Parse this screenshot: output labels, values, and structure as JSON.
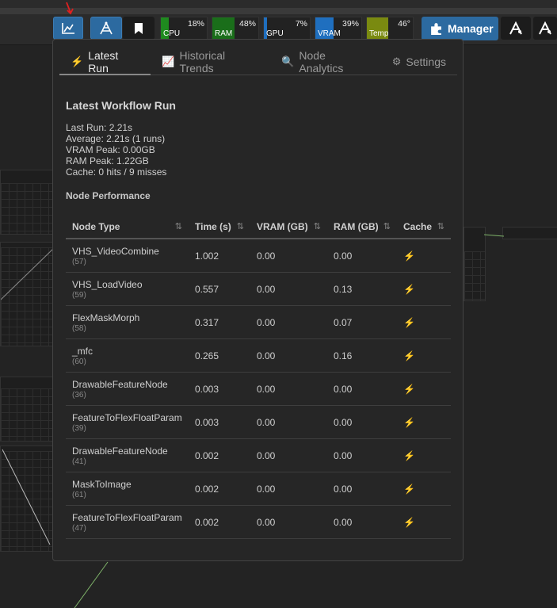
{
  "topbar": {
    "monitors": [
      {
        "label": "CPU",
        "value": "18%",
        "fill_pct": 18,
        "color": "#1f8a1f"
      },
      {
        "label": "RAM",
        "value": "48%",
        "fill_pct": 48,
        "color": "#1a6e1a"
      },
      {
        "label": "GPU",
        "value": "7%",
        "fill_pct": 7,
        "color": "#1f6fbf"
      },
      {
        "label": "VRAM",
        "value": "39%",
        "fill_pct": 39,
        "color": "#1f6fbf"
      },
      {
        "label": "Temp",
        "value": "46°",
        "fill_pct": 46,
        "color": "#7a8a10"
      }
    ],
    "manager_label": "Manager"
  },
  "popup": {
    "tabs": [
      {
        "label": "Latest Run",
        "icon": "bolt-icon"
      },
      {
        "label": "Historical Trends",
        "icon": "chart-icon"
      },
      {
        "label": "Node Analytics",
        "icon": "magnifier-icon"
      },
      {
        "label": "Settings",
        "icon": "gear-icon"
      }
    ],
    "title": "Latest Workflow Run",
    "stats": {
      "last_run": "Last Run: 2.21s",
      "average": "Average: 2.21s (1 runs)",
      "vram_peak": "VRAM Peak: 0.00GB",
      "ram_peak": "RAM Peak: 1.22GB",
      "cache": "Cache: 0 hits / 9 misses"
    },
    "perf_title": "Node Performance",
    "columns": [
      "Node Type",
      "Time (s)",
      "VRAM (GB)",
      "RAM (GB)",
      "Cache"
    ],
    "rows": [
      {
        "node": "VHS_VideoCombine",
        "id": "(57)",
        "time": "1.002",
        "vram": "0.00",
        "ram": "0.00"
      },
      {
        "node": "VHS_LoadVideo",
        "id": "(59)",
        "time": "0.557",
        "vram": "0.00",
        "ram": "0.13"
      },
      {
        "node": "FlexMaskMorph",
        "id": "(58)",
        "time": "0.317",
        "vram": "0.00",
        "ram": "0.07"
      },
      {
        "node": "_mfc",
        "id": "(60)",
        "time": "0.265",
        "vram": "0.00",
        "ram": "0.16"
      },
      {
        "node": "DrawableFeatureNode",
        "id": "(36)",
        "time": "0.003",
        "vram": "0.00",
        "ram": "0.00"
      },
      {
        "node": "FeatureToFlexFloatParam",
        "id": "(39)",
        "time": "0.003",
        "vram": "0.00",
        "ram": "0.00"
      },
      {
        "node": "DrawableFeatureNode",
        "id": "(41)",
        "time": "0.002",
        "vram": "0.00",
        "ram": "0.00"
      },
      {
        "node": "MaskToImage",
        "id": "(61)",
        "time": "0.002",
        "vram": "0.00",
        "ram": "0.00"
      },
      {
        "node": "FeatureToFlexFloatParam",
        "id": "(47)",
        "time": "0.002",
        "vram": "0.00",
        "ram": "0.00"
      }
    ],
    "sort_glyph": "⇅",
    "cache_glyph": "⚡"
  }
}
